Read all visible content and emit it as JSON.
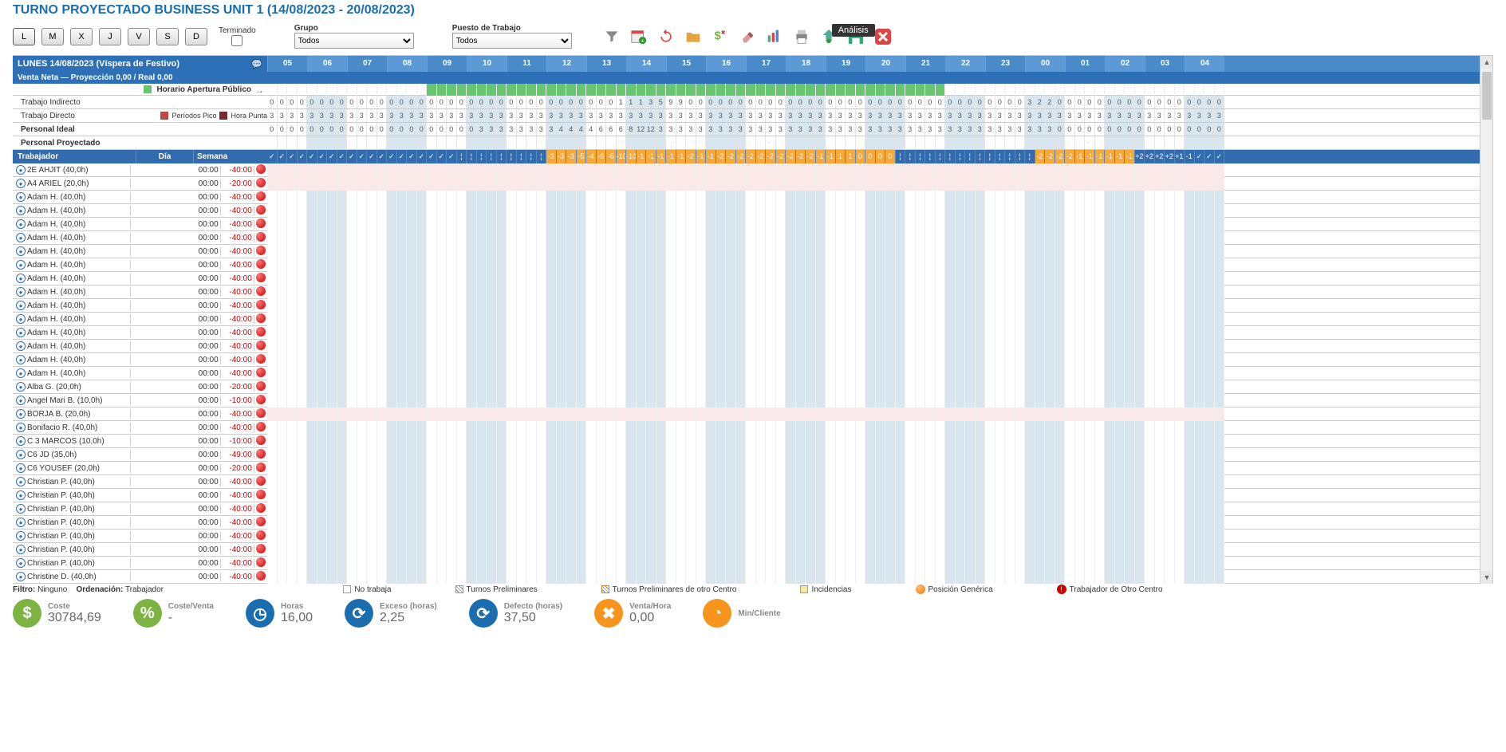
{
  "title": "Turno Proyectado Business Unit 1 (14/08/2023 - 20/08/2023)",
  "day_buttons": [
    "L",
    "M",
    "X",
    "J",
    "V",
    "S",
    "D"
  ],
  "terminado_label": "Terminado",
  "grupo_label": "Grupo",
  "grupo_value": "Todos",
  "puesto_label": "Puesto de Trabajo",
  "puesto_value": "Todos",
  "tooltip_analisis": "Análisis",
  "date_header": "LUNES 14/08/2023 (Víspera de Festivo)",
  "venta_header": "Venta Neta  —  Proyección 0,00  /  Real 0,00",
  "horario_label": "Horario Apertura Público",
  "trabajo_indirecto": "Trabajo Indirecto",
  "trabajo_directo": "Trabajo Directo",
  "periodos_pico": "Períodos Pico",
  "hora_punta": "Hora Punta",
  "personal_ideal": "Personal Ideal",
  "personal_proyectado": "Personal Proyectado",
  "col_trabajador": "Trabajador",
  "col_dia": "Día",
  "col_semana": "Semana",
  "hours": [
    "05",
    "06",
    "07",
    "08",
    "09",
    "10",
    "11",
    "12",
    "13",
    "14",
    "15",
    "16",
    "17",
    "18",
    "19",
    "20",
    "21",
    "22",
    "23",
    "00",
    "01",
    "02",
    "03",
    "04"
  ],
  "open_start": 16,
  "open_end": 68,
  "indirecto_vals": [
    0,
    0,
    0,
    0,
    0,
    0,
    0,
    0,
    0,
    0,
    0,
    0,
    0,
    0,
    0,
    0,
    0,
    0,
    0,
    0,
    0,
    0,
    0,
    0,
    0,
    0,
    0,
    0,
    0,
    0,
    0,
    0,
    0,
    0,
    0,
    1,
    1,
    1,
    3,
    5,
    9,
    9,
    0,
    0,
    0,
    0,
    0,
    0,
    0,
    0,
    0,
    0,
    0,
    0,
    0,
    0,
    0,
    0,
    0,
    0,
    0,
    0,
    0,
    0,
    0,
    0,
    0,
    0,
    0,
    0,
    0,
    0,
    0,
    0,
    0,
    0,
    3,
    2,
    2,
    0,
    0,
    0,
    0,
    0,
    0,
    0,
    0,
    0,
    0,
    0,
    0,
    0,
    0,
    0,
    0,
    0
  ],
  "directo_vals": [
    3,
    3,
    3,
    3,
    3,
    3,
    3,
    3,
    3,
    3,
    3,
    3,
    3,
    3,
    3,
    3,
    3,
    3,
    3,
    3,
    3,
    3,
    3,
    3,
    3,
    3,
    3,
    3,
    3,
    3,
    3,
    3,
    3,
    3,
    3,
    3,
    3,
    3,
    3,
    3,
    3,
    3,
    3,
    3,
    3,
    3,
    3,
    3,
    3,
    3,
    3,
    3,
    3,
    3,
    3,
    3,
    3,
    3,
    3,
    3,
    3,
    3,
    3,
    3,
    3,
    3,
    3,
    3,
    3,
    3,
    3,
    3,
    3,
    3,
    3,
    3,
    3,
    3,
    3,
    3,
    3,
    3,
    3,
    3,
    3,
    3,
    3,
    3,
    3,
    3,
    3,
    3,
    3,
    3,
    3,
    3
  ],
  "ideal_vals": [
    0,
    0,
    0,
    0,
    0,
    0,
    0,
    0,
    0,
    0,
    0,
    0,
    0,
    0,
    0,
    0,
    0,
    0,
    0,
    0,
    0,
    3,
    3,
    3,
    3,
    3,
    3,
    3,
    3,
    4,
    4,
    4,
    4,
    6,
    6,
    6,
    8,
    12,
    12,
    3,
    3,
    3,
    3,
    3,
    3,
    3,
    3,
    3,
    3,
    3,
    3,
    3,
    3,
    3,
    3,
    3,
    3,
    3,
    3,
    3,
    3,
    3,
    3,
    3,
    3,
    3,
    3,
    3,
    3,
    3,
    3,
    3,
    3,
    3,
    3,
    3,
    3,
    3,
    3,
    0,
    0,
    0,
    0,
    0,
    0,
    0,
    0,
    0,
    0,
    0,
    0,
    0,
    0,
    0,
    0,
    0
  ],
  "proyectado_vals": [
    "",
    "",
    "",
    "",
    "",
    "",
    "",
    "",
    "",
    "",
    "",
    "",
    "",
    "",
    "",
    "",
    "",
    "",
    "",
    "",
    "",
    "",
    "",
    "",
    "",
    "",
    "",
    "",
    "",
    "",
    "",
    "",
    "",
    "",
    "",
    "",
    "",
    "",
    "",
    "",
    "",
    "",
    "",
    "",
    "",
    "",
    "",
    "",
    "",
    "",
    "",
    "",
    "",
    "",
    "",
    "",
    "",
    "",
    "",
    "",
    "",
    "",
    "",
    "",
    "",
    "",
    "",
    "",
    "",
    "",
    "",
    "",
    "",
    "",
    "",
    "",
    "",
    "",
    "",
    "",
    "",
    "",
    "",
    "",
    "",
    "",
    "",
    "",
    "",
    "",
    "",
    "",
    "",
    "",
    "",
    ""
  ],
  "check_vals": [
    "✓",
    "✓",
    "✓",
    "✓",
    "✓",
    "✓",
    "✓",
    "✓",
    "✓",
    "✓",
    "✓",
    "✓",
    "✓",
    "✓",
    "✓",
    "✓",
    "✓",
    "✓",
    "✓",
    "",
    "",
    "",
    "",
    "",
    "",
    "",
    "",
    "",
    "-3",
    "-3",
    "-3",
    "-5",
    "-4",
    "-6",
    "-6",
    "-10",
    "-10",
    "-1",
    "-1",
    "-1",
    "-1",
    "-1",
    "-2",
    "-1",
    "-1",
    "-2",
    "-2",
    "-2",
    "-2",
    "-2",
    "-2",
    "-2",
    "-2",
    "-2",
    "-2",
    "-1",
    "-1",
    "1",
    "1",
    "0",
    "0",
    "0",
    "0",
    "",
    "",
    "",
    "",
    "",
    "",
    "",
    "",
    "",
    "",
    "",
    "",
    "",
    "",
    "-2",
    "-2",
    "-2",
    "-2",
    "-1",
    "-1",
    "-1",
    "-1",
    "-1",
    "-1",
    "+2",
    "+2",
    "+2",
    "+2",
    "+1",
    "-1",
    "✓",
    "✓",
    "✓"
  ],
  "check_orange_from": 19,
  "check_orange_to": 86,
  "workers": [
    {
      "name": "2E AHJIT (40,0h)",
      "dh": "00:00",
      "sh": "-40:00",
      "bullet": "red",
      "pink": true
    },
    {
      "name": "A4 ARIEL (20,0h)",
      "dh": "00:00",
      "sh": "-20:00",
      "bullet": "red",
      "pink": true
    },
    {
      "name": "Adam H. (40,0h)",
      "dh": "00:00",
      "sh": "-40:00",
      "bullet": "red"
    },
    {
      "name": "Adam H. (40,0h)",
      "dh": "00:00",
      "sh": "-40:00",
      "bullet": "red"
    },
    {
      "name": "Adam H. (40,0h)",
      "dh": "00:00",
      "sh": "-40:00",
      "bullet": "red"
    },
    {
      "name": "Adam H. (40,0h)",
      "dh": "00:00",
      "sh": "-40:00",
      "bullet": "red"
    },
    {
      "name": "Adam H. (40,0h)",
      "dh": "00:00",
      "sh": "-40:00",
      "bullet": "red"
    },
    {
      "name": "Adam H. (40,0h)",
      "dh": "00:00",
      "sh": "-40:00",
      "bullet": "red"
    },
    {
      "name": "Adam H. (40,0h)",
      "dh": "00:00",
      "sh": "-40:00",
      "bullet": "red"
    },
    {
      "name": "Adam H. (40,0h)",
      "dh": "00:00",
      "sh": "-40:00",
      "bullet": "red"
    },
    {
      "name": "Adam H. (40,0h)",
      "dh": "00:00",
      "sh": "-40:00",
      "bullet": "red"
    },
    {
      "name": "Adam H. (40,0h)",
      "dh": "00:00",
      "sh": "-40:00",
      "bullet": "red"
    },
    {
      "name": "Adam H. (40,0h)",
      "dh": "00:00",
      "sh": "-40:00",
      "bullet": "red"
    },
    {
      "name": "Adam H. (40,0h)",
      "dh": "00:00",
      "sh": "-40:00",
      "bullet": "red"
    },
    {
      "name": "Adam H. (40,0h)",
      "dh": "00:00",
      "sh": "-40:00",
      "bullet": "red"
    },
    {
      "name": "Adam H. (40,0h)",
      "dh": "00:00",
      "sh": "-40:00",
      "bullet": "red"
    },
    {
      "name": "Alba G. (20,0h)",
      "dh": "00:00",
      "sh": "-20:00",
      "bullet": "red"
    },
    {
      "name": "Angel Mari B. (10,0h)",
      "dh": "00:00",
      "sh": "-10:00",
      "bullet": "red"
    },
    {
      "name": "BORJA B. (20,0h)",
      "dh": "00:00",
      "sh": "-40:00",
      "bullet": "red",
      "pink": true
    },
    {
      "name": "Bonifacio R. (40,0h)",
      "dh": "00:00",
      "sh": "-40:00",
      "bullet": "red"
    },
    {
      "name": "C 3 MARCOS (10,0h)",
      "dh": "00:00",
      "sh": "-10:00",
      "bullet": "red"
    },
    {
      "name": "C6 JD (35,0h)",
      "dh": "00:00",
      "sh": "-49:00",
      "bullet": "red"
    },
    {
      "name": "C6 YOUSEF (20,0h)",
      "dh": "00:00",
      "sh": "-20:00",
      "bullet": "red"
    },
    {
      "name": "Christian P. (40,0h)",
      "dh": "00:00",
      "sh": "-40:00",
      "bullet": "red"
    },
    {
      "name": "Christian P. (40,0h)",
      "dh": "00:00",
      "sh": "-40:00",
      "bullet": "red"
    },
    {
      "name": "Christian P. (40,0h)",
      "dh": "00:00",
      "sh": "-40:00",
      "bullet": "red"
    },
    {
      "name": "Christian P. (40,0h)",
      "dh": "00:00",
      "sh": "-40:00",
      "bullet": "red"
    },
    {
      "name": "Christian P. (40,0h)",
      "dh": "00:00",
      "sh": "-40:00",
      "bullet": "red"
    },
    {
      "name": "Christian P. (40,0h)",
      "dh": "00:00",
      "sh": "-40:00",
      "bullet": "red"
    },
    {
      "name": "Christian P. (40,0h)",
      "dh": "00:00",
      "sh": "-40:00",
      "bullet": "red"
    },
    {
      "name": "Christine D. (40,0h)",
      "dh": "00:00",
      "sh": "-40:00",
      "bullet": "red"
    }
  ],
  "filtro_label": "Filtro:",
  "filtro_val": "Ninguno",
  "orden_label": "Ordenación:",
  "orden_val": "Trabajador",
  "leg_no_trabaja": "No trabaja",
  "leg_prelim": "Turnos Preliminares",
  "leg_prelim_otro": "Turnos Preliminares de otro Centro",
  "leg_incidencias": "Incidencias",
  "leg_generica": "Posición Genérica",
  "leg_otro_centro": "Trabajador de Otro Centro",
  "stats": [
    {
      "label": "Coste",
      "value": "30784,69",
      "color": "#7cb342",
      "icon": "$"
    },
    {
      "label": "Coste/Venta",
      "value": "-",
      "color": "#7cb342",
      "icon": "%"
    },
    {
      "label": "Horas",
      "value": "16,00",
      "color": "#1a6eb0",
      "icon": "◷"
    },
    {
      "label": "Exceso (horas)",
      "value": "2,25",
      "color": "#1a6eb0",
      "icon": "⟳"
    },
    {
      "label": "Defecto (horas)",
      "value": "37,50",
      "color": "#1a6eb0",
      "icon": "⟳"
    },
    {
      "label": "Venta/Hora",
      "value": "0,00",
      "color": "#f7941d",
      "icon": "✖"
    },
    {
      "label": "Min/Cliente",
      "value": "",
      "color": "#f7941d",
      "icon": "◔"
    }
  ]
}
